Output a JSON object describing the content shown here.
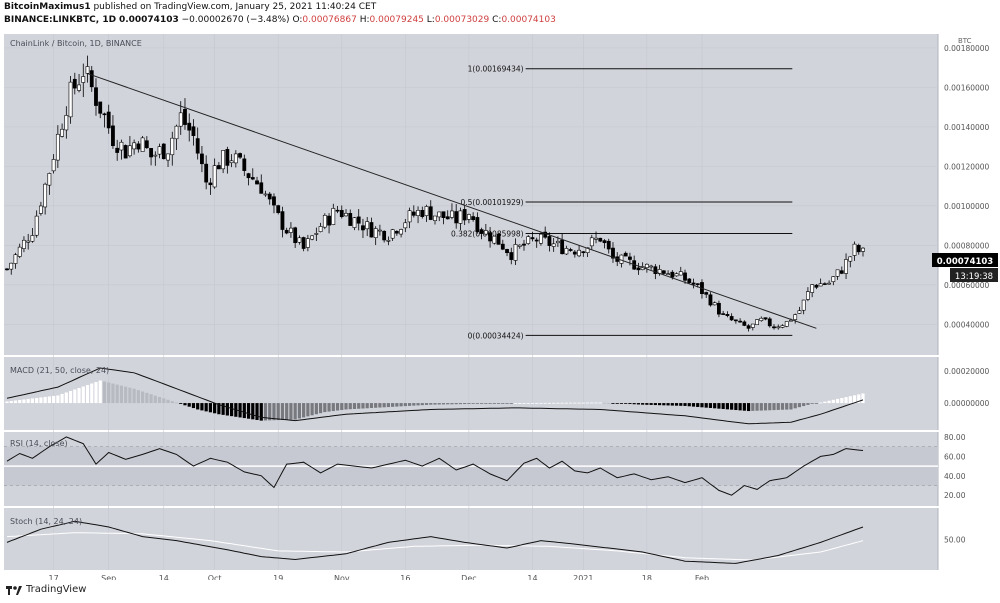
{
  "header": {
    "author": "BitcoinMaximus1",
    "published": "published on TradingView.com, January 25, 2021 11:40:24 CET",
    "symbol": "BINANCE:LINKBTC, 1D",
    "last": "0.00074103",
    "change": "−0.00002670 (−3.48%)",
    "o_label": "O:",
    "o": "0.00076867",
    "h_label": "H:",
    "h": "0.00079245",
    "l_label": "L:",
    "l": "0.00073029",
    "c_label": "C:",
    "c": "0.00074103"
  },
  "footer": {
    "brand": "TradingView"
  },
  "colors": {
    "panel_bg": "#d2d4dc",
    "up": "#ffffff",
    "down": "#000000",
    "badge": "#000000"
  },
  "chart_data": {
    "type": "candlestick",
    "title": "ChainLink / Bitcoin, 1D, BINANCE",
    "currency": "BTC",
    "x_ticks": [
      "17",
      "Sep",
      "14",
      "Oct",
      "19",
      "Nov",
      "16",
      "Dec",
      "14",
      "2021",
      "18",
      "Feb"
    ],
    "price_ticks": [
      "0.00180000",
      "0.00160000",
      "0.00140000",
      "0.00120000",
      "0.00100000",
      "0.00080000",
      "0.00060000",
      "0.00040000"
    ],
    "ylim": [
      0.00026,
      0.00185
    ],
    "close_path": [
      [
        0,
        0.00068
      ],
      [
        6,
        0.00088
      ],
      [
        10,
        0.00118
      ],
      [
        14,
        0.00152
      ],
      [
        18,
        0.00169
      ],
      [
        22,
        0.0015
      ],
      [
        25,
        0.00135
      ],
      [
        28,
        0.00128
      ],
      [
        31,
        0.00134
      ],
      [
        34,
        0.00125
      ],
      [
        38,
        0.0013
      ],
      [
        41,
        0.00145
      ],
      [
        44,
        0.00135
      ],
      [
        47,
        0.00112
      ],
      [
        50,
        0.00122
      ],
      [
        53,
        0.00125
      ],
      [
        56,
        0.00118
      ],
      [
        60,
        0.0011
      ],
      [
        63,
        0.00097
      ],
      [
        66,
        0.00088
      ],
      [
        70,
        0.00078
      ],
      [
        74,
        0.0009
      ],
      [
        78,
        0.00098
      ],
      [
        82,
        0.00093
      ],
      [
        86,
        0.00088
      ],
      [
        90,
        0.00086
      ],
      [
        94,
        0.00093
      ],
      [
        98,
        0.00098
      ],
      [
        102,
        0.00095
      ],
      [
        106,
        0.00093
      ],
      [
        109,
        0.00097
      ],
      [
        112,
        0.00088
      ],
      [
        116,
        0.00082
      ],
      [
        119,
        0.00076
      ],
      [
        122,
        0.0008
      ],
      [
        125,
        0.00083
      ],
      [
        128,
        0.00081
      ],
      [
        131,
        0.00079
      ],
      [
        134,
        0.00078
      ],
      [
        137,
        0.0008
      ],
      [
        140,
        0.00084
      ],
      [
        143,
        0.00073
      ],
      [
        147,
        0.00071
      ],
      [
        151,
        0.00069
      ],
      [
        155,
        0.00067
      ],
      [
        159,
        0.00064
      ],
      [
        163,
        0.00059
      ],
      [
        166,
        0.00052
      ],
      [
        169,
        0.00044
      ],
      [
        172,
        0.00041
      ],
      [
        175,
        0.00038
      ],
      [
        178,
        0.00042
      ],
      [
        181,
        0.00039
      ],
      [
        184,
        0.00041
      ],
      [
        187,
        0.00047
      ],
      [
        190,
        0.0006
      ],
      [
        194,
        0.00061
      ],
      [
        197,
        0.00068
      ],
      [
        200,
        0.00078
      ],
      [
        202,
        0.00076
      ]
    ],
    "last_price": "0.00074103",
    "countdown": "13:19:38",
    "fibonacci": [
      {
        "label": "1(0.00169434)",
        "value": 0.00169434
      },
      {
        "label": "0.5(0.00101929)",
        "value": 0.00101929
      },
      {
        "label": "0.382(0.00085998)",
        "value": 0.00085998
      },
      {
        "label": "0(0.00034424)",
        "value": 0.00034424
      }
    ],
    "trendline": [
      [
        19,
        0.00167
      ],
      [
        191,
        0.00038
      ]
    ],
    "macd": {
      "label": "MACD (21, 50, close, 24)",
      "ticks": [
        "0.00020000",
        "0.00000000"
      ],
      "ylim": [
        -0.00015,
        0.00027
      ],
      "line": [
        [
          0,
          3e-05
        ],
        [
          12,
          0.0001
        ],
        [
          22,
          0.00022
        ],
        [
          30,
          0.00019
        ],
        [
          40,
          9e-05
        ],
        [
          50,
          -1e-05
        ],
        [
          60,
          -9e-05
        ],
        [
          68,
          -0.00011
        ],
        [
          80,
          -7e-05
        ],
        [
          100,
          -4e-05
        ],
        [
          120,
          -3e-05
        ],
        [
          140,
          -4e-05
        ],
        [
          160,
          -8e-05
        ],
        [
          175,
          -0.00013
        ],
        [
          185,
          -0.00012
        ],
        [
          192,
          -7e-05
        ],
        [
          202,
          2e-05
        ]
      ],
      "signal": [
        [
          0,
          2e-05
        ],
        [
          15,
          6e-05
        ],
        [
          30,
          0.0001
        ],
        [
          45,
          8e-05
        ],
        [
          60,
          2e-05
        ],
        [
          75,
          -3e-05
        ],
        [
          95,
          -3e-05
        ],
        [
          120,
          -3e-05
        ],
        [
          150,
          -5e-05
        ],
        [
          175,
          -8e-05
        ],
        [
          190,
          -8e-05
        ],
        [
          202,
          -4e-05
        ]
      ]
    },
    "rsi": {
      "label": "RSI (14, close)",
      "ticks": [
        "80.00",
        "60.00",
        "40.00",
        "20.00"
      ],
      "ylim": [
        12,
        82
      ],
      "upper": 70,
      "lower": 30,
      "mid": 50,
      "line": [
        [
          0,
          55
        ],
        [
          3,
          63
        ],
        [
          6,
          58
        ],
        [
          10,
          70
        ],
        [
          14,
          80
        ],
        [
          18,
          73
        ],
        [
          21,
          52
        ],
        [
          24,
          64
        ],
        [
          28,
          57
        ],
        [
          32,
          62
        ],
        [
          36,
          68
        ],
        [
          40,
          62
        ],
        [
          44,
          50
        ],
        [
          48,
          58
        ],
        [
          52,
          54
        ],
        [
          56,
          44
        ],
        [
          60,
          40
        ],
        [
          63,
          28
        ],
        [
          66,
          52
        ],
        [
          70,
          54
        ],
        [
          74,
          43
        ],
        [
          78,
          52
        ],
        [
          82,
          50
        ],
        [
          86,
          48
        ],
        [
          90,
          52
        ],
        [
          94,
          56
        ],
        [
          98,
          50
        ],
        [
          102,
          58
        ],
        [
          106,
          46
        ],
        [
          110,
          52
        ],
        [
          114,
          42
        ],
        [
          118,
          35
        ],
        [
          122,
          53
        ],
        [
          125,
          58
        ],
        [
          128,
          48
        ],
        [
          131,
          55
        ],
        [
          134,
          45
        ],
        [
          137,
          43
        ],
        [
          140,
          48
        ],
        [
          144,
          38
        ],
        [
          148,
          42
        ],
        [
          152,
          36
        ],
        [
          156,
          39
        ],
        [
          160,
          33
        ],
        [
          164,
          38
        ],
        [
          168,
          25
        ],
        [
          171,
          20
        ],
        [
          174,
          30
        ],
        [
          177,
          26
        ],
        [
          180,
          35
        ],
        [
          184,
          38
        ],
        [
          188,
          50
        ],
        [
          192,
          60
        ],
        [
          195,
          62
        ],
        [
          198,
          68
        ],
        [
          202,
          66
        ]
      ]
    },
    "stoch": {
      "label": "Stoch (14, 24, 24)",
      "ticks": [
        "50.00"
      ],
      "ylim": [
        0,
        100
      ],
      "k": [
        [
          0,
          45
        ],
        [
          8,
          68
        ],
        [
          16,
          82
        ],
        [
          24,
          72
        ],
        [
          32,
          55
        ],
        [
          40,
          48
        ],
        [
          52,
          32
        ],
        [
          60,
          20
        ],
        [
          68,
          15
        ],
        [
          80,
          25
        ],
        [
          90,
          45
        ],
        [
          100,
          55
        ],
        [
          108,
          45
        ],
        [
          118,
          35
        ],
        [
          126,
          48
        ],
        [
          134,
          42
        ],
        [
          142,
          35
        ],
        [
          150,
          28
        ],
        [
          160,
          12
        ],
        [
          172,
          8
        ],
        [
          182,
          22
        ],
        [
          192,
          45
        ],
        [
          202,
          72
        ]
      ],
      "d": [
        [
          0,
          55
        ],
        [
          16,
          62
        ],
        [
          32,
          60
        ],
        [
          48,
          48
        ],
        [
          64,
          30
        ],
        [
          80,
          28
        ],
        [
          96,
          38
        ],
        [
          112,
          40
        ],
        [
          128,
          38
        ],
        [
          144,
          30
        ],
        [
          160,
          18
        ],
        [
          176,
          14
        ],
        [
          192,
          28
        ],
        [
          202,
          48
        ]
      ]
    }
  }
}
